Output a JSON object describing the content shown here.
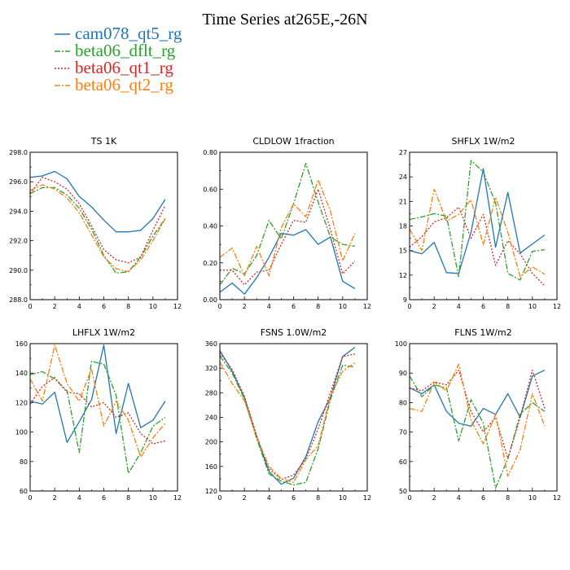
{
  "title": "Time Series at265E,-26N",
  "colors": {
    "cam078_qt5_rg": "#1f77b4",
    "beta06_dflt_rg": "#2ca02c",
    "beta06_qt1_rg": "#d62728",
    "beta06_qt2_rg": "#ff7f0e"
  },
  "legend": [
    {
      "name": "cam078_qt5_rg",
      "color": "#1f77b4",
      "dash": "solid"
    },
    {
      "name": "beta06_dflt_rg",
      "color": "#2ca02c",
      "dash": "dashdot"
    },
    {
      "name": "beta06_qt1_rg",
      "color": "#d62728",
      "dash": "dotted"
    },
    {
      "name": "beta06_qt2_rg",
      "color": "#ff7f0e",
      "dash": "dashdot"
    }
  ],
  "chart_data": [
    {
      "type": "line",
      "title": "TS   1K",
      "x": [
        0,
        1,
        2,
        3,
        4,
        5,
        6,
        7,
        8,
        9,
        10,
        11
      ],
      "xlim": [
        0,
        12
      ],
      "xticks": [
        0,
        2,
        4,
        6,
        8,
        10,
        12
      ],
      "ylim": [
        288,
        298
      ],
      "yticks": [
        "288.0",
        "290.0",
        "292.0",
        "294.0",
        "296.0",
        "298.0"
      ],
      "series": [
        {
          "name": "cam078_qt5_rg",
          "values": [
            296.3,
            296.4,
            296.7,
            296.2,
            295.0,
            294.3,
            293.4,
            292.6,
            292.6,
            292.7,
            293.5,
            294.8
          ]
        },
        {
          "name": "beta06_dflt_rg",
          "values": [
            295.2,
            295.6,
            295.6,
            295.1,
            294.2,
            292.8,
            291.0,
            289.8,
            289.9,
            290.9,
            292.3,
            293.5
          ]
        },
        {
          "name": "beta06_qt1_rg",
          "values": [
            295.2,
            296.3,
            296.0,
            295.5,
            294.5,
            293.0,
            291.4,
            290.7,
            290.5,
            290.9,
            292.7,
            294.4
          ]
        },
        {
          "name": "beta06_qt2_rg",
          "values": [
            295.4,
            295.8,
            295.5,
            294.9,
            293.9,
            292.4,
            290.9,
            290.1,
            289.9,
            290.7,
            292.0,
            293.5
          ]
        }
      ]
    },
    {
      "type": "line",
      "title": "CLDLOW   1fraction",
      "x": [
        0,
        1,
        2,
        3,
        4,
        5,
        6,
        7,
        8,
        9,
        10,
        11
      ],
      "xlim": [
        0,
        12
      ],
      "xticks": [
        0,
        2,
        4,
        6,
        8,
        10,
        12
      ],
      "ylim": [
        0,
        0.8
      ],
      "yticks": [
        "0.00",
        "0.20",
        "0.40",
        "0.60",
        "0.80"
      ],
      "series": [
        {
          "name": "cam078_qt5_rg",
          "values": [
            0.04,
            0.09,
            0.03,
            0.12,
            0.23,
            0.36,
            0.35,
            0.38,
            0.3,
            0.34,
            0.1,
            0.06
          ]
        },
        {
          "name": "beta06_dflt_rg",
          "values": [
            0.08,
            0.17,
            0.14,
            0.24,
            0.43,
            0.33,
            0.52,
            0.74,
            0.53,
            0.34,
            0.3,
            0.29
          ]
        },
        {
          "name": "beta06_qt1_rg",
          "values": [
            0.16,
            0.16,
            0.08,
            0.15,
            0.16,
            0.3,
            0.43,
            0.42,
            0.6,
            0.38,
            0.14,
            0.21
          ]
        },
        {
          "name": "beta06_qt2_rg",
          "values": [
            0.23,
            0.28,
            0.13,
            0.29,
            0.13,
            0.39,
            0.52,
            0.45,
            0.65,
            0.48,
            0.21,
            0.36
          ]
        }
      ]
    },
    {
      "type": "line",
      "title": "SHFLX   1W/m2",
      "x": [
        0,
        1,
        2,
        3,
        4,
        5,
        6,
        7,
        8,
        9,
        10,
        11
      ],
      "xlim": [
        0,
        12
      ],
      "xticks": [
        0,
        2,
        4,
        6,
        8,
        10,
        12
      ],
      "ylim": [
        9,
        27
      ],
      "yticks": [
        "9",
        "12",
        "15",
        "18",
        "21",
        "24",
        "27"
      ],
      "series": [
        {
          "name": "cam078_qt5_rg",
          "values": [
            15.0,
            14.6,
            16.0,
            12.3,
            12.2,
            17.2,
            25.0,
            15.4,
            22.1,
            14.7,
            15.8,
            16.9
          ]
        },
        {
          "name": "beta06_dflt_rg",
          "values": [
            18.8,
            19.1,
            19.5,
            19.2,
            11.8,
            26.0,
            24.6,
            20.8,
            12.2,
            11.4,
            14.9,
            15.1
          ]
        },
        {
          "name": "beta06_qt1_rg",
          "values": [
            15.4,
            16.7,
            18.5,
            19.0,
            20.3,
            16.5,
            19.4,
            13.2,
            16.2,
            14.6,
            12.2,
            10.7
          ]
        },
        {
          "name": "beta06_qt2_rg",
          "values": [
            17.6,
            15.0,
            22.5,
            18.6,
            19.4,
            21.2,
            15.7,
            21.5,
            17.2,
            11.8,
            13.0,
            12.1
          ]
        }
      ]
    },
    {
      "type": "line",
      "title": "LHFLX   1W/m2",
      "x": [
        0,
        1,
        2,
        3,
        4,
        5,
        6,
        7,
        8,
        9,
        10,
        11
      ],
      "xlim": [
        0,
        12
      ],
      "xticks": [
        0,
        2,
        4,
        6,
        8,
        10,
        12
      ],
      "ylim": [
        60,
        160
      ],
      "yticks": [
        "60",
        "80",
        "100",
        "120",
        "140",
        "160"
      ],
      "series": [
        {
          "name": "cam078_qt5_rg",
          "values": [
            121,
            119,
            127,
            93,
            107,
            122,
            159,
            99,
            133,
            103,
            108,
            121
          ]
        },
        {
          "name": "beta06_dflt_rg",
          "values": [
            139,
            141,
            136,
            128,
            86,
            148,
            146,
            125,
            72,
            86,
            104,
            110
          ]
        },
        {
          "name": "beta06_qt1_rg",
          "values": [
            119,
            131,
            137,
            127,
            126,
            117,
            120,
            110,
            113,
            99,
            92,
            94
          ]
        },
        {
          "name": "beta06_qt2_rg",
          "values": [
            136,
            121,
            159,
            133,
            121,
            143,
            104,
            121,
            108,
            83,
            96,
            106
          ]
        }
      ]
    },
    {
      "type": "line",
      "title": "FSNS   1.0W/m2",
      "x": [
        0,
        1,
        2,
        3,
        4,
        5,
        6,
        7,
        8,
        9,
        10,
        11
      ],
      "xlim": [
        0,
        12
      ],
      "xticks": [
        0,
        2,
        4,
        6,
        8,
        10,
        12
      ],
      "ylim": [
        120,
        360
      ],
      "yticks": [
        "120",
        "160",
        "200",
        "240",
        "280",
        "320",
        "360"
      ],
      "series": [
        {
          "name": "cam078_qt5_rg",
          "values": [
            349,
            315,
            272,
            208,
            152,
            131,
            141,
            176,
            233,
            272,
            339,
            354
          ]
        },
        {
          "name": "beta06_dflt_rg",
          "values": [
            340,
            312,
            270,
            205,
            148,
            136,
            130,
            134,
            189,
            269,
            325,
            322
          ]
        },
        {
          "name": "beta06_qt1_rg",
          "values": [
            345,
            318,
            274,
            210,
            156,
            139,
            146,
            172,
            221,
            280,
            339,
            343
          ]
        },
        {
          "name": "beta06_qt2_rg",
          "values": [
            330,
            295,
            267,
            208,
            160,
            140,
            134,
            171,
            194,
            275,
            315,
            329
          ]
        }
      ]
    },
    {
      "type": "line",
      "title": "FLNS   1W/m2",
      "x": [
        0,
        1,
        2,
        3,
        4,
        5,
        6,
        7,
        8,
        9,
        10,
        11
      ],
      "xlim": [
        0,
        12
      ],
      "xticks": [
        0,
        2,
        4,
        6,
        8,
        10,
        12
      ],
      "ylim": [
        50,
        100
      ],
      "yticks": [
        "50",
        "60",
        "70",
        "80",
        "90",
        "100"
      ],
      "series": [
        {
          "name": "cam078_qt5_rg",
          "values": [
            85,
            83,
            86,
            77,
            73,
            72,
            78,
            76,
            83,
            75,
            89,
            91
          ]
        },
        {
          "name": "beta06_dflt_rg",
          "values": [
            89,
            82,
            86,
            85,
            67,
            81,
            73,
            51,
            61,
            76,
            80,
            77
          ]
        },
        {
          "name": "beta06_qt1_rg",
          "values": [
            85,
            84,
            87,
            86,
            91,
            77,
            70,
            75,
            61,
            75,
            91,
            78
          ]
        },
        {
          "name": "beta06_qt2_rg",
          "values": [
            78,
            77,
            87,
            84,
            93,
            74,
            66,
            76,
            55,
            64,
            83,
            72
          ]
        }
      ]
    }
  ]
}
